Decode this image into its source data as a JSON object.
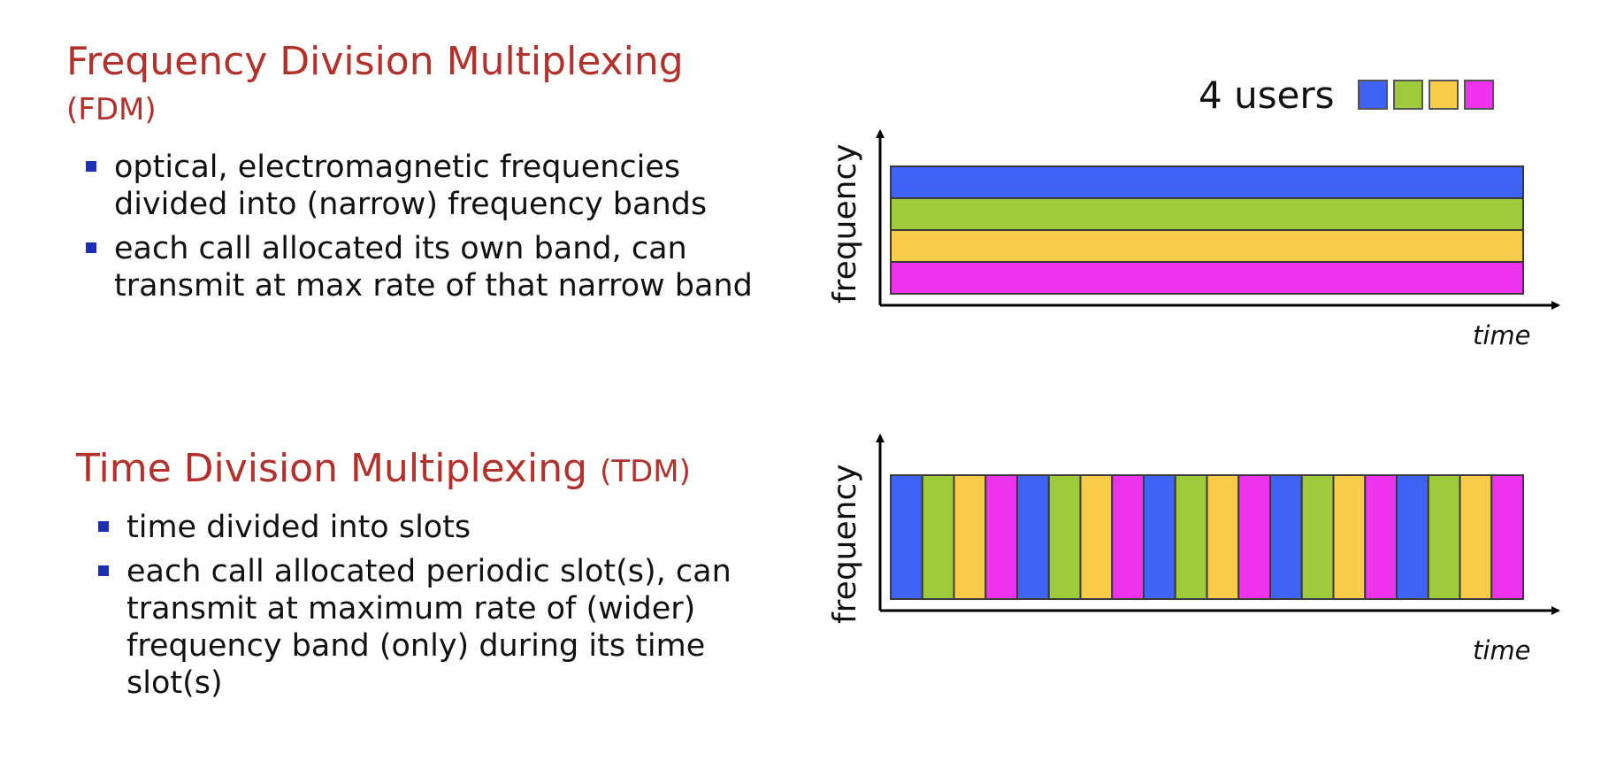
{
  "fdm": {
    "title": "Frequency Division Multiplexing",
    "abbr": "(FDM)",
    "bullets": [
      "optical, electromagnetic frequencies divided into (narrow) frequency bands",
      "each call allocated its own band, can transmit at max rate of that narrow band"
    ]
  },
  "tdm": {
    "title": "Time Division Multiplexing",
    "abbr": "(TDM)",
    "bullets": [
      "time divided into slots",
      "each call allocated periodic slot(s), can transmit at maximum rate of (wider) frequency band (only)  during its time slot(s)"
    ]
  },
  "legend": {
    "label": "4 users",
    "colors": [
      "#3f63f5",
      "#9dcb3c",
      "#f8cb49",
      "#ee33ef"
    ]
  },
  "diagrams": {
    "fdm": {
      "ylabel": "frequency",
      "xlabel": "time",
      "bands": [
        0,
        1,
        2,
        3
      ]
    },
    "tdm": {
      "ylabel": "frequency",
      "xlabel": "time",
      "slots": [
        0,
        1,
        2,
        3,
        0,
        1,
        2,
        3,
        0,
        1,
        2,
        3,
        0,
        1,
        2,
        3,
        0,
        1,
        2,
        3
      ]
    }
  }
}
